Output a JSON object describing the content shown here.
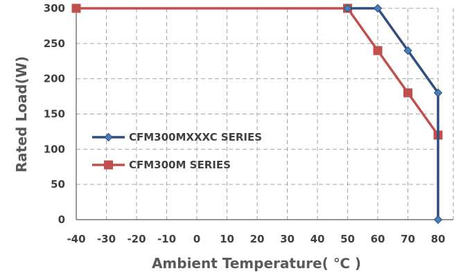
{
  "chart_data": {
    "type": "line",
    "title": "",
    "xlabel": "Ambient Temperature( ℃ )",
    "ylabel": "Rated Load(W)",
    "xlim": [
      -40,
      80
    ],
    "ylim": [
      0,
      300
    ],
    "xticks": [
      "-40",
      "-30",
      "-20",
      "-10",
      "0",
      "10",
      "20",
      "30",
      "40",
      "50",
      "60",
      "70",
      "80"
    ],
    "yticks": [
      "0",
      "50",
      "100",
      "150",
      "200",
      "250",
      "300"
    ],
    "grid": true,
    "legend_position": "left-middle",
    "series": [
      {
        "name": "CFM300MXXXC SERIES",
        "color": "#2f4d7e",
        "marker": "diamond",
        "x": [
          50,
          60,
          70,
          80,
          80
        ],
        "y": [
          300,
          300,
          240,
          180,
          0
        ]
      },
      {
        "name": "CFM300M SERIES",
        "color": "#c0504d",
        "marker": "square",
        "x": [
          -40,
          50,
          60,
          70,
          80
        ],
        "y": [
          300,
          300,
          240,
          180,
          120
        ]
      }
    ]
  }
}
